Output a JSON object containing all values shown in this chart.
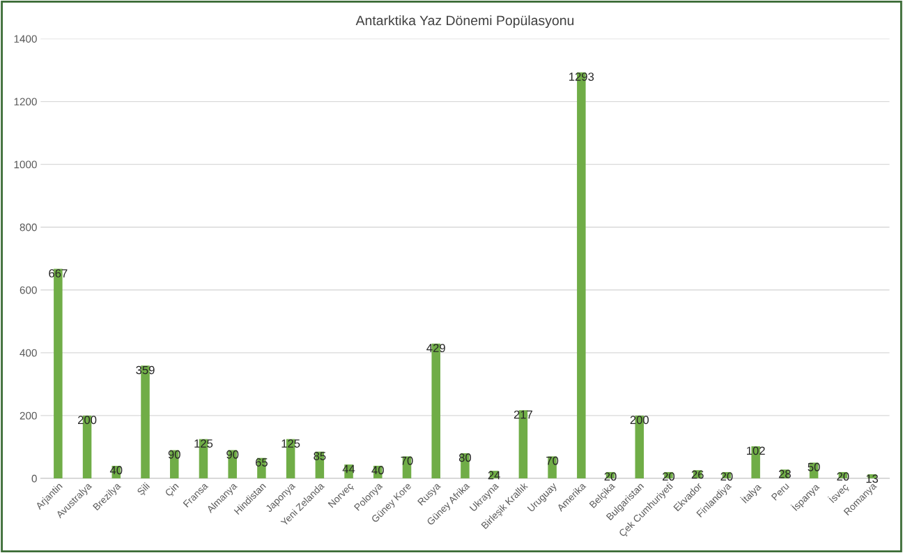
{
  "chart_data": {
    "type": "bar",
    "title": "Antarktika Yaz Dönemi Popülasyonu",
    "categories": [
      "Arjantin",
      "Avustralya",
      "Brezilya",
      "Şili",
      "Çin",
      "Fransa",
      "Almanya",
      "Hindistan",
      "Japonya",
      "Yeni Zelanda",
      "Norveç",
      "Polonya",
      "Güney Kore",
      "Rusya",
      "Güney Afrika",
      "Ukrayna",
      "Birleşik Krallık",
      "Uruguay",
      "Amerika",
      "Belçika",
      "Bulgaristan",
      "Çek Cumhuriyeti",
      "Ekvador",
      "Finlandiya",
      "İtalya",
      "Peru",
      "İspanya",
      "İsveç",
      "Romanya"
    ],
    "values": [
      667,
      200,
      40,
      359,
      90,
      125,
      90,
      65,
      125,
      85,
      44,
      40,
      70,
      429,
      80,
      24,
      217,
      70,
      1293,
      20,
      200,
      20,
      26,
      20,
      102,
      28,
      50,
      20,
      13
    ],
    "color": "#70ad47",
    "ylim": [
      0,
      1400
    ],
    "yticks": [
      0,
      200,
      400,
      600,
      800,
      1000,
      1200,
      1400
    ],
    "grid": "y",
    "data_labels": true
  }
}
